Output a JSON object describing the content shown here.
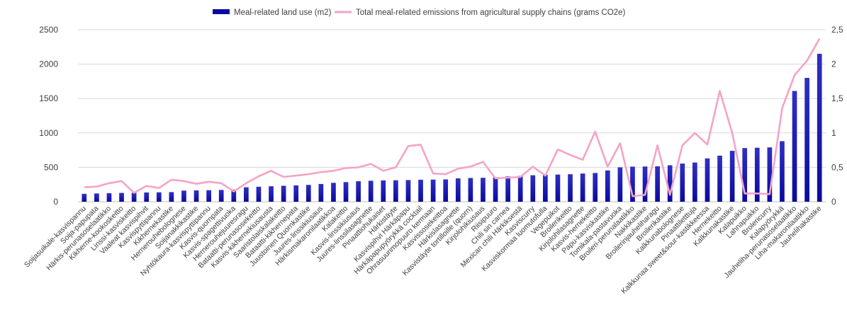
{
  "chart_data": {
    "type": "bar+line",
    "categories": [
      "Soijasuikale-kasvispannu",
      "Soija-papupata",
      "Härkis-perunasoselaatikko",
      "Kikherne-kookoskeitto",
      "Linssi-kasviskeitto",
      "Vaaleat kasvispihvit",
      "Kasvispyttipannu",
      "Kikhernekastike",
      "Hernerouhebolognese",
      "Soijanakkikastike",
      "Nyhtökaura-kasvispyttipannu",
      "Kasvis-quornpata",
      "Kasvis-spagettivuoka",
      "Hernerouhejuuresragu",
      "Bataatti-perunasosekeitto",
      "Kasvis-kikhernekiusausta",
      "Saaristolaiskalakeitto",
      "Bataatti-kikhernepata",
      "Juustoinen Quornkastike",
      "Juures-linssikiusaus",
      "Härkismakaronilaatikkoa",
      "Kalakeitto",
      "Kasvis-linssikiusaus",
      "Juures-linssilasagnette",
      "Pinaattiohukaiset",
      "Härkistäyte",
      "Kasvispihvi Härkäpapu",
      "Härkäpapupyörykkä cocktail",
      "Ohrasuurimopuuro kermaan",
      "Kasvissosekeittoa",
      "Härkislasagnette",
      "Kasvistäyte tortilloille (quorn)",
      "Kirjolohikiusaus",
      "Riisipuuro",
      "Chili sin carnea",
      "Mexican chili Härkiksestä",
      "Kasviscurry",
      "Kasviskormaa luomutofulla",
      "Vegepuikot",
      "Broilerikeitto",
      "Kirjolohilasagnette",
      "Kasvis-hernekeitto",
      "Papu-kasviskastike",
      "Tomikala-pastavuoka",
      "Broileri-perunalaatikko",
      "Nakkikastike",
      "Broilerinjauheliharagu",
      "Broilerikastike",
      "Kalkkunabolognese",
      "Pinaattiletttuja",
      "Kalkkunaa sweet&sour-kastikkeessa",
      "Hernekeitto",
      "Kalkkunakastike",
      "Kalapuikko",
      "Lahnapuikko",
      "Brolericurry",
      "Kalapyörykkä",
      "Jauheliha-perunasoselaatikko",
      "Liha-makaronilaatikko",
      "Jauhelihakastike"
    ],
    "series": [
      {
        "name": "Meal-related land use (m2)",
        "kind": "bar",
        "axis": "left",
        "values": [
          115,
          120,
          125,
          128,
          130,
          135,
          137,
          140,
          162,
          165,
          168,
          172,
          176,
          210,
          218,
          225,
          232,
          238,
          245,
          258,
          275,
          285,
          298,
          305,
          310,
          312,
          315,
          320,
          322,
          325,
          340,
          345,
          348,
          355,
          368,
          375,
          385,
          390,
          395,
          400,
          410,
          418,
          455,
          500,
          510,
          512,
          515,
          530,
          555,
          570,
          630,
          670,
          740,
          780,
          785,
          790,
          880,
          1610,
          1800,
          2150
        ]
      },
      {
        "name": "Total meal-related emissions from agricultural supply chains (grams CO2e)",
        "kind": "line",
        "axis": "right",
        "values": [
          0.21,
          0.22,
          0.27,
          0.3,
          0.13,
          0.23,
          0.2,
          0.32,
          0.3,
          0.26,
          0.29,
          0.27,
          0.15,
          0.27,
          0.37,
          0.45,
          0.36,
          0.38,
          0.4,
          0.43,
          0.45,
          0.49,
          0.5,
          0.55,
          0.45,
          0.5,
          0.81,
          0.83,
          0.41,
          0.4,
          0.48,
          0.51,
          0.58,
          0.34,
          0.35,
          0.36,
          0.51,
          0.38,
          0.76,
          0.68,
          0.61,
          1.02,
          0.51,
          0.85,
          0.08,
          0.1,
          0.82,
          0.1,
          0.82,
          1.0,
          0.83,
          1.61,
          1.0,
          0.12,
          0.12,
          0.11,
          1.36,
          1.84,
          2.05,
          2.37
        ]
      }
    ],
    "y_left": {
      "min": 0,
      "max": 2500,
      "ticks": [
        "0",
        "500",
        "1000",
        "1500",
        "2000",
        "2500"
      ]
    },
    "y_right": {
      "min": 0,
      "max": 2.5,
      "ticks": [
        "0",
        "0,5",
        "1",
        "1,5",
        "2",
        "2,5"
      ]
    },
    "grid": true,
    "legend_position": "top",
    "colors": {
      "bar_top": "#2f2fc4",
      "bar_bottom": "#0a0a9e",
      "line": "#f5a3c7",
      "grid": "#d9d9d9",
      "text": "#404040"
    }
  }
}
